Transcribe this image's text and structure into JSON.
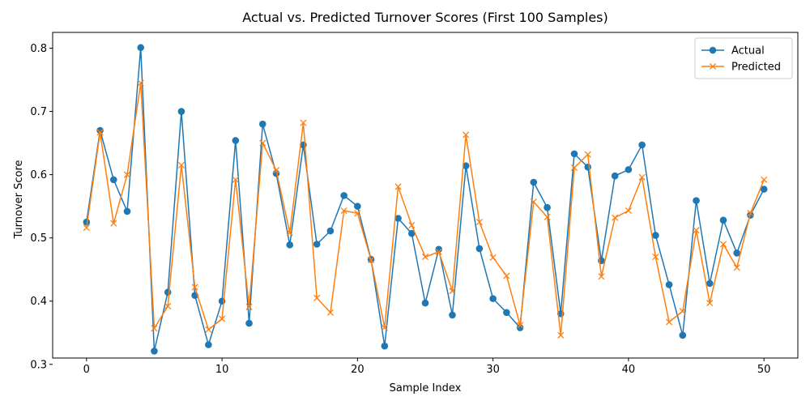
{
  "chart_data": {
    "type": "line",
    "title": "Actual vs. Predicted Turnover Scores (First 100 Samples)",
    "xlabel": "Sample Index",
    "ylabel": "Turnover Score",
    "xlim": [
      -2.5,
      52.5
    ],
    "ylim": [
      0.31,
      0.825
    ],
    "xticks": [
      0,
      10,
      20,
      30,
      40,
      50
    ],
    "yticks": [
      0.3,
      0.4,
      0.5,
      0.6,
      0.7,
      0.8
    ],
    "grid": false,
    "legend_position": "top-right",
    "x": [
      0,
      1,
      2,
      3,
      4,
      5,
      6,
      7,
      8,
      9,
      10,
      11,
      12,
      13,
      14,
      15,
      16,
      17,
      18,
      19,
      20,
      21,
      22,
      23,
      24,
      25,
      26,
      27,
      28,
      29,
      30,
      31,
      32,
      33,
      34,
      35,
      36,
      37,
      38,
      39,
      40,
      41,
      42,
      43,
      44,
      45,
      46,
      47,
      48,
      49,
      50
    ],
    "series": [
      {
        "name": "Actual",
        "color": "#1f77b4",
        "marker": "circle",
        "values": [
          0.525,
          0.67,
          0.592,
          0.542,
          0.801,
          0.321,
          0.414,
          0.7,
          0.409,
          0.331,
          0.4,
          0.654,
          0.365,
          0.68,
          0.602,
          0.489,
          0.647,
          0.49,
          0.511,
          0.567,
          0.55,
          0.466,
          0.329,
          0.531,
          0.507,
          0.397,
          0.482,
          0.378,
          0.614,
          0.483,
          0.404,
          0.382,
          0.358,
          0.588,
          0.548,
          0.38,
          0.633,
          0.612,
          0.464,
          0.598,
          0.608,
          0.647,
          0.504,
          0.426,
          0.346,
          0.559,
          0.428,
          0.528,
          0.476,
          0.536,
          0.577
        ]
      },
      {
        "name": "Predicted",
        "color": "#ff7f0e",
        "marker": "x",
        "values": [
          0.516,
          0.667,
          0.523,
          0.6,
          0.745,
          0.357,
          0.392,
          0.615,
          0.422,
          0.355,
          0.372,
          0.592,
          0.391,
          0.65,
          0.607,
          0.508,
          0.682,
          0.405,
          0.382,
          0.543,
          0.539,
          0.465,
          0.358,
          0.581,
          0.52,
          0.47,
          0.478,
          0.416,
          0.663,
          0.525,
          0.469,
          0.44,
          0.362,
          0.557,
          0.533,
          0.346,
          0.611,
          0.632,
          0.439,
          0.532,
          0.543,
          0.596,
          0.47,
          0.367,
          0.384,
          0.512,
          0.397,
          0.49,
          0.453,
          0.539,
          0.592
        ]
      }
    ]
  }
}
